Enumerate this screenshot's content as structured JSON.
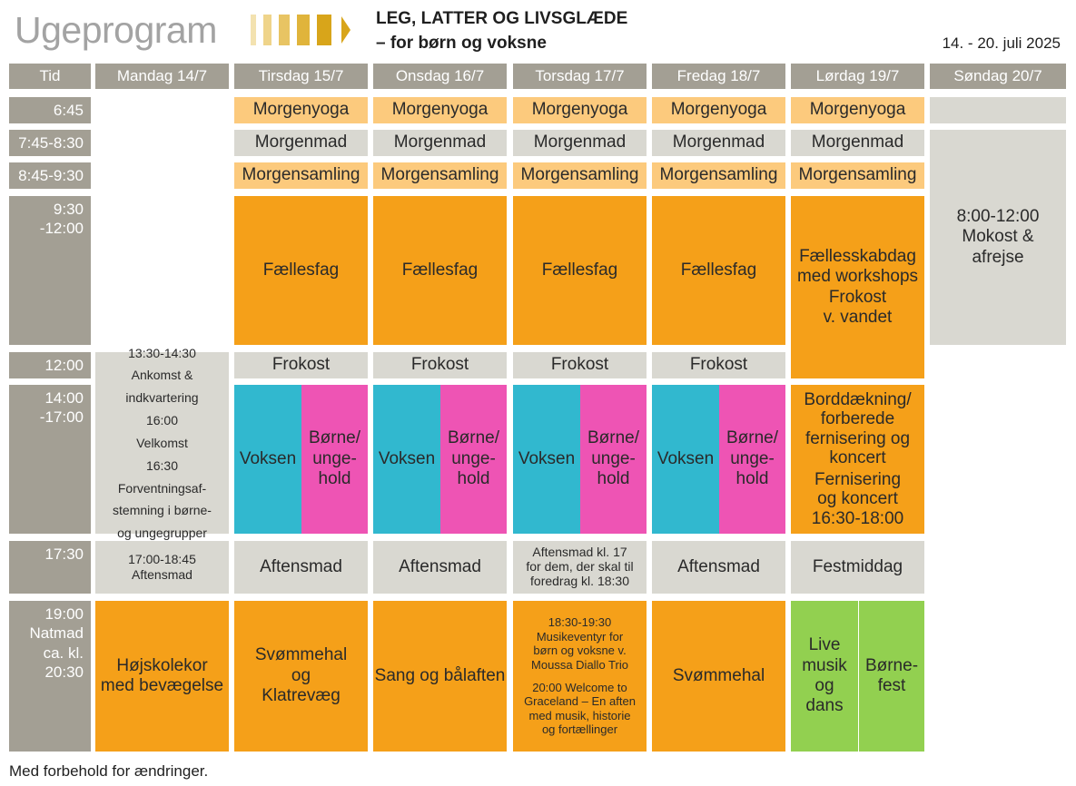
{
  "header": {
    "title": "Ugeprogram",
    "subtitle_line1": "LEG, LATTER OG LIVSGLÆDE",
    "subtitle_line2": "– for børn og voksne",
    "date_range": "14. - 20. juli 2025",
    "bar_colors": [
      "#f3e2b0",
      "#efd48a",
      "#e8c463",
      "#e0b43b",
      "#d8a51a"
    ]
  },
  "columns": {
    "time": "Tid",
    "mon": "Mandag 14/7",
    "tue": "Tirsdag 15/7",
    "wed": "Onsdag 16/7",
    "thu": "Torsdag 17/7",
    "fri": "Fredag 18/7",
    "sat": "Lørdag 19/7",
    "sun": "Søndag 20/7"
  },
  "times": {
    "t645": "6:45",
    "t745": "7:45-8:30",
    "t845": "8:45-9:30",
    "t930_a": "9:30",
    "t930_b": "-12:00",
    "t1200": "12:00",
    "t1400_a": "14:00",
    "t1400_b": "-17:00",
    "t1730": "17:30",
    "t1900_a": "19:00",
    "t1900_b": "Natmad",
    "t1900_c": "ca. kl.",
    "t1900_d": "20:30"
  },
  "common": {
    "yoga": "Morgenyoga",
    "breakfast": "Morgenmad",
    "assembly": "Morgensamling",
    "faellesfag": "Fællesfag",
    "lunch": "Frokost",
    "adult": "Voksen",
    "kids_1": "Børne/",
    "kids_2": "unge-",
    "kids_3": "hold",
    "dinner": "Aftensmad"
  },
  "mon": {
    "arrival_1": "13:30-14:30",
    "arrival_2": "Ankomst &",
    "arrival_3": "indkvartering",
    "welcome_1": "16:00",
    "welcome_2": "Velkomst",
    "expect_1": "16:30",
    "expect_2": "Forventningsaf-",
    "expect_3": "stemning i børne-",
    "expect_4": "og ungegrupper",
    "dinner_1": "17:00-18:45",
    "dinner_2": "Aftensmad",
    "evening_1": "Højskolekor",
    "evening_2": "med bevægelse"
  },
  "tue": {
    "evening_1": "Svømmehal",
    "evening_2": "og",
    "evening_3": "Klatrevæg"
  },
  "wed": {
    "evening": "Sang og bålaften"
  },
  "thu": {
    "dinner_1": "Aftensmad kl. 17",
    "dinner_2": "for dem, der skal til",
    "dinner_3": "foredrag kl. 18:30",
    "ev1_1": "18:30-19:30",
    "ev1_2": "Musikeventyr for",
    "ev1_3": "børn og voksne v.",
    "ev1_4": "Moussa Diallo Trio",
    "ev2_1": "20:00 Welcome to",
    "ev2_2": "Graceland – En aften",
    "ev2_3": "med musik, historie",
    "ev2_4": "og fortællinger"
  },
  "fri": {
    "evening": "Svømmehal"
  },
  "sat": {
    "day_1": "Fællesskabdag",
    "day_2": "med workshops",
    "day_3": "Frokost",
    "day_4": "v. vandet",
    "aft_1": "Borddækning/",
    "aft_2": "forberede",
    "aft_3": "fernisering og",
    "aft_4": "koncert",
    "aft_5": "Fernisering",
    "aft_6": "og koncert",
    "aft_7": "16:30-18:00",
    "dinner": "Festmiddag",
    "music_1": "Live",
    "music_2": "musik",
    "music_3": "og",
    "music_4": "dans",
    "party_1": "Børne-",
    "party_2": "fest"
  },
  "sun": {
    "line1": "8:00-12:00",
    "line2": "Mokost &",
    "line3": "afrejse"
  },
  "footer": "Med forbehold for ændringer."
}
